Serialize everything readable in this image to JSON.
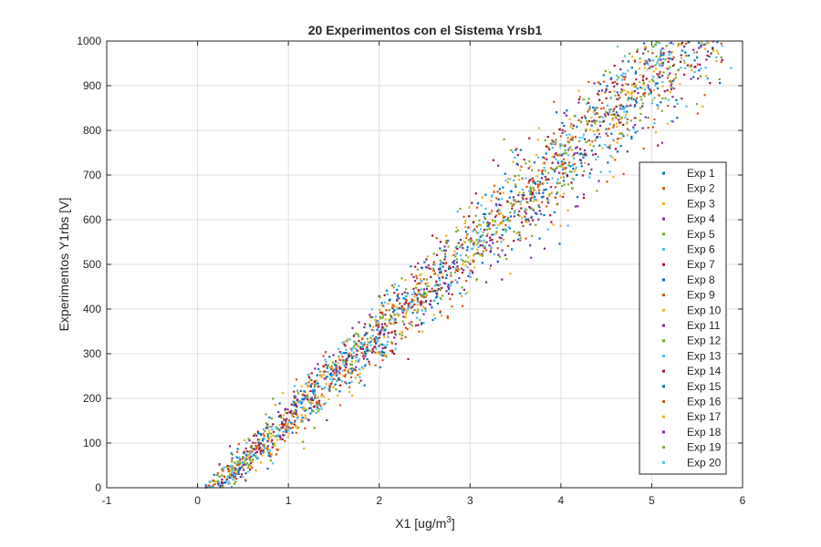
{
  "chart_data": {
    "type": "scatter",
    "title": "20 Experimentos con el Sistema Yrsb1",
    "xlabel": "X1 [ug/m",
    "xlabel_sup": "3",
    "xlabel_close": "]",
    "ylabel": "Experimentos Y1rbs [V]",
    "xlim": [
      -1,
      6
    ],
    "ylim": [
      0,
      1000
    ],
    "xticks": [
      -1,
      0,
      1,
      2,
      3,
      4,
      5,
      6
    ],
    "yticks": [
      0,
      100,
      200,
      300,
      400,
      500,
      600,
      700,
      800,
      900,
      1000
    ],
    "grid": true,
    "legend_position": "right",
    "relationship": {
      "slope": 192,
      "intercept": -40,
      "x_range": [
        -0.3,
        5.9
      ]
    },
    "points_per_series": 150,
    "series": [
      {
        "name": "Exp 1",
        "color": "#0072BD"
      },
      {
        "name": "Exp 2",
        "color": "#D95319"
      },
      {
        "name": "Exp 3",
        "color": "#EDB120"
      },
      {
        "name": "Exp 4",
        "color": "#7E2F8E"
      },
      {
        "name": "Exp 5",
        "color": "#77AC30"
      },
      {
        "name": "Exp 6",
        "color": "#4DBEEE"
      },
      {
        "name": "Exp 7",
        "color": "#A2142F"
      },
      {
        "name": "Exp 8",
        "color": "#0072BD"
      },
      {
        "name": "Exp 9",
        "color": "#D95319"
      },
      {
        "name": "Exp 10",
        "color": "#EDB120"
      },
      {
        "name": "Exp 11",
        "color": "#7E2F8E"
      },
      {
        "name": "Exp 12",
        "color": "#77AC30"
      },
      {
        "name": "Exp 13",
        "color": "#4DBEEE"
      },
      {
        "name": "Exp 14",
        "color": "#A2142F"
      },
      {
        "name": "Exp 15",
        "color": "#0072BD"
      },
      {
        "name": "Exp 16",
        "color": "#D95319"
      },
      {
        "name": "Exp 17",
        "color": "#EDB120"
      },
      {
        "name": "Exp 18",
        "color": "#7E2F8E"
      },
      {
        "name": "Exp 19",
        "color": "#77AC30"
      },
      {
        "name": "Exp 20",
        "color": "#4DBEEE"
      }
    ]
  }
}
